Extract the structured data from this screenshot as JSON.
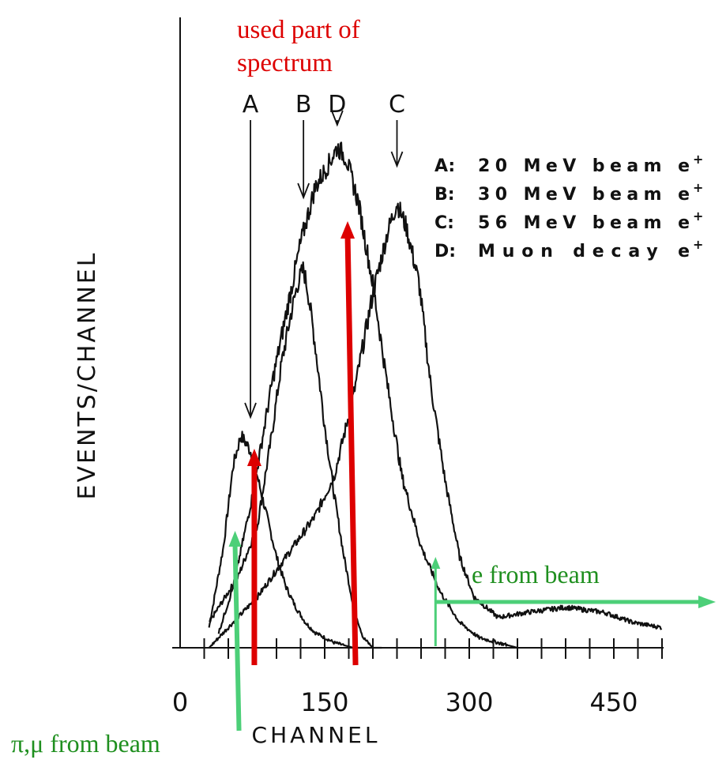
{
  "chart_data": {
    "type": "line",
    "xlabel": "CHANNEL",
    "ylabel": "EVENTS/CHANNEL",
    "xlim": [
      0,
      500
    ],
    "ylim": [
      0,
      100
    ],
    "x_ticks": [
      "0",
      "150",
      "300",
      "450"
    ],
    "x_tick_values": [
      0,
      150,
      300,
      450
    ],
    "minor_tick_step": 25,
    "grid": false,
    "legend_position": "top-right",
    "legend": [
      {
        "key": "A",
        "sep": ":",
        "text": "20 MeV beam e",
        "sup": "+"
      },
      {
        "key": "B",
        "sep": ":",
        "text": "30 MeV beam e",
        "sup": "+"
      },
      {
        "key": "C",
        "sep": ":",
        "text": "56 MeV beam e",
        "sup": "+"
      },
      {
        "key": "D",
        "sep": ":",
        "text": "Muon decay e",
        "sup": "+"
      }
    ],
    "peak_labels": [
      {
        "label": "A",
        "x": 73
      },
      {
        "label": "B",
        "x": 128
      },
      {
        "label": "D",
        "x": 163
      },
      {
        "label": "C",
        "x": 225
      }
    ],
    "series": [
      {
        "key": "A",
        "x": [
          30,
          45,
          55,
          63,
          70,
          75,
          80,
          90,
          100,
          110,
          120,
          130,
          140,
          150,
          160,
          170,
          180,
          195,
          210
        ],
        "y": [
          4,
          20,
          36,
          42,
          40,
          38,
          34,
          26,
          18,
          12,
          8,
          5,
          3,
          2,
          1,
          0.5,
          0,
          0,
          0
        ]
      },
      {
        "key": "B",
        "x": [
          30,
          40,
          60,
          80,
          95,
          105,
          115,
          122,
          128,
          133,
          140,
          150,
          160,
          170,
          180,
          190,
          200
        ],
        "y": [
          5,
          8,
          14,
          24,
          42,
          56,
          66,
          72,
          75,
          70,
          60,
          44,
          30,
          18,
          8,
          2,
          0
        ]
      },
      {
        "key": "C",
        "x": [
          30,
          50,
          80,
          110,
          140,
          160,
          180,
          200,
          215,
          225,
          235,
          248,
          260,
          275,
          290,
          305,
          330,
          360,
          400,
          440,
          470,
          500
        ],
        "y": [
          0,
          4,
          10,
          18,
          26,
          34,
          50,
          70,
          82,
          88,
          83,
          72,
          52,
          33,
          18,
          10,
          6,
          7,
          8,
          7,
          5,
          4
        ]
      },
      {
        "key": "D",
        "x": [
          40,
          55,
          75,
          95,
          110,
          125,
          140,
          155,
          163,
          172,
          185,
          200,
          215,
          230,
          250,
          270,
          290,
          310,
          330,
          350
        ],
        "y": [
          3,
          12,
          30,
          52,
          66,
          80,
          91,
          96,
          99,
          97,
          88,
          72,
          52,
          34,
          20,
          11,
          5,
          2,
          1,
          0
        ]
      }
    ],
    "annotations": [
      {
        "text_lines": [
          "used part of",
          "spectrum"
        ],
        "color": "#dd0000"
      },
      {
        "text": "e from beam",
        "color": "#1f8f1f"
      },
      {
        "text": "π,μ from beam",
        "color": "#1f8f1f"
      }
    ],
    "red_arrow_x": [
      77,
      182
    ],
    "green_arrow_x": [
      57,
      265
    ],
    "colors": {
      "ink": "#111111",
      "red": "#dd0000",
      "green": "#4ccf78",
      "green_text": "#1f8f1f"
    }
  }
}
